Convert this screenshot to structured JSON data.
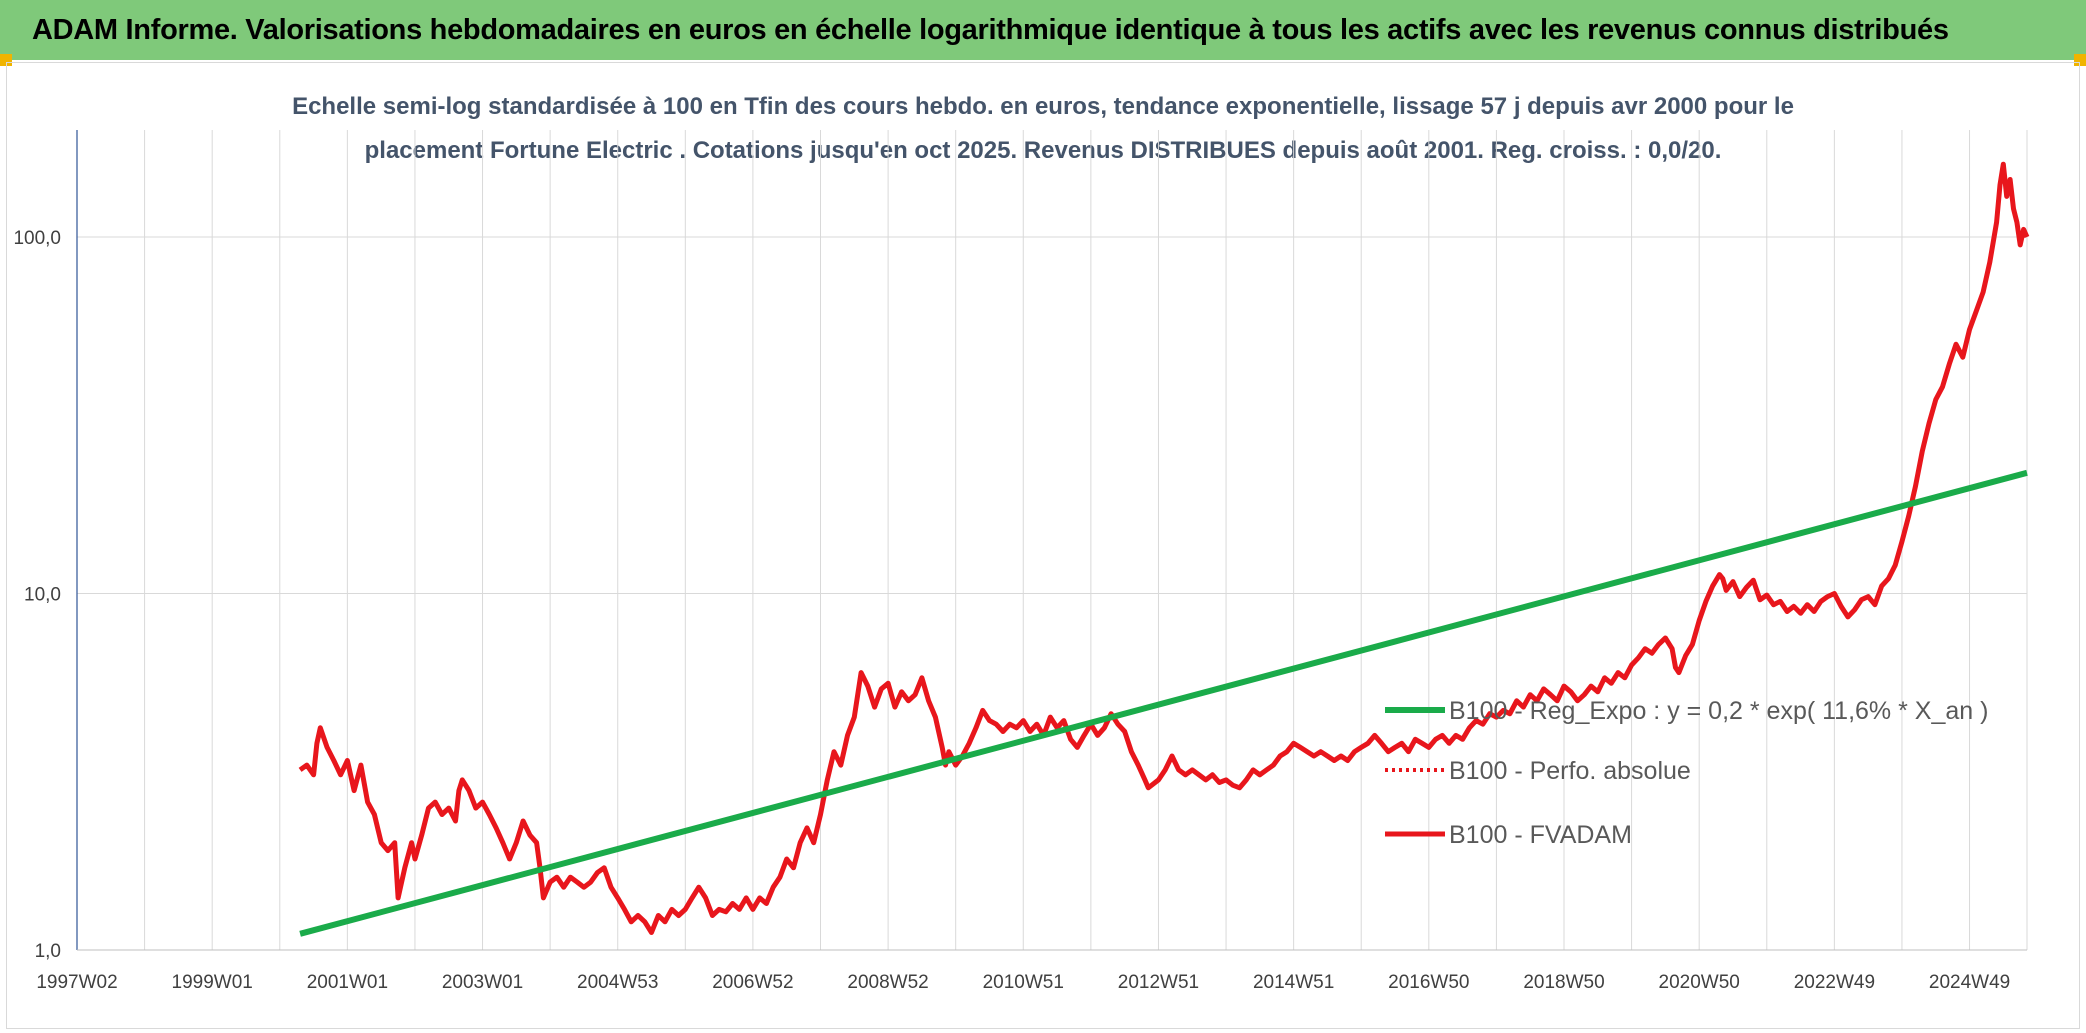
{
  "header": {
    "title": "ADAM Informe. Valorisations hebdomadaires en euros en échelle logarithmique identique à tous les actifs avec les revenus connus distribués"
  },
  "colors": {
    "header_bg": "#7fc97a",
    "regression": "#1aab4a",
    "fvadam": "#e8161c",
    "perfo": "#e8161c",
    "grid": "#d9d9d9",
    "axis": "#2f5597"
  },
  "chart_data": {
    "type": "line",
    "subtitle_lines": [
      "Echelle semi-log standardisée à 100 en Tfin des cours hebdo. en euros, tendance exponentielle, lissage 57 j depuis avr 2000 pour le",
      "placement Fortune Electric . Cotations jusqu'en oct 2025. Revenus DISTRIBUES depuis août 2001. Reg. croiss. : 0,0/20."
    ],
    "y_scale": "log",
    "ylim": [
      1,
      200
    ],
    "y_ticks": [
      {
        "value": 1,
        "label": "1,0"
      },
      {
        "value": 10,
        "label": "10,0"
      },
      {
        "value": 100,
        "label": "100,0"
      }
    ],
    "xlim": [
      1997.0,
      2025.85
    ],
    "x_ticks": [
      {
        "t": 1997.0,
        "label": "1997W02"
      },
      {
        "t": 1999.0,
        "label": "1999W01"
      },
      {
        "t": 2001.0,
        "label": "2001W01"
      },
      {
        "t": 2003.0,
        "label": "2003W01"
      },
      {
        "t": 2005.0,
        "label": "2004W53"
      },
      {
        "t": 2007.0,
        "label": "2006W52"
      },
      {
        "t": 2009.0,
        "label": "2008W52"
      },
      {
        "t": 2011.0,
        "label": "2010W51"
      },
      {
        "t": 2013.0,
        "label": "2012W51"
      },
      {
        "t": 2015.0,
        "label": "2014W51"
      },
      {
        "t": 2017.0,
        "label": "2016W50"
      },
      {
        "t": 2019.0,
        "label": "2018W50"
      },
      {
        "t": 2021.0,
        "label": "2020W50"
      },
      {
        "t": 2023.0,
        "label": "2022W49"
      },
      {
        "t": 2025.0,
        "label": "2024W49"
      }
    ],
    "grid": true,
    "legend_position": "right",
    "series": [
      {
        "name": "B100 - Reg_Expo : y = 0,2 * exp( 11,6% *  X_an )",
        "style": "solid-green",
        "points": [
          [
            2000.3,
            1.11
          ],
          [
            2025.85,
            21.8
          ]
        ]
      },
      {
        "name": "B100 - Perfo. absolue",
        "style": "dotted-red",
        "points": []
      },
      {
        "name": "B100 - FVADAM",
        "style": "solid-red",
        "points": [
          [
            2000.3,
            3.2
          ],
          [
            2000.4,
            3.3
          ],
          [
            2000.5,
            3.1
          ],
          [
            2000.55,
            3.8
          ],
          [
            2000.6,
            4.2
          ],
          [
            2000.7,
            3.7
          ],
          [
            2000.8,
            3.4
          ],
          [
            2000.9,
            3.1
          ],
          [
            2001.0,
            3.4
          ],
          [
            2001.1,
            2.8
          ],
          [
            2001.2,
            3.3
          ],
          [
            2001.3,
            2.6
          ],
          [
            2001.4,
            2.4
          ],
          [
            2001.5,
            2.0
          ],
          [
            2001.6,
            1.9
          ],
          [
            2001.7,
            2.0
          ],
          [
            2001.75,
            1.4
          ],
          [
            2001.85,
            1.7
          ],
          [
            2001.95,
            2.0
          ],
          [
            2002.0,
            1.8
          ],
          [
            2002.1,
            2.1
          ],
          [
            2002.2,
            2.5
          ],
          [
            2002.3,
            2.6
          ],
          [
            2002.4,
            2.4
          ],
          [
            2002.5,
            2.5
          ],
          [
            2002.6,
            2.3
          ],
          [
            2002.65,
            2.8
          ],
          [
            2002.7,
            3.0
          ],
          [
            2002.8,
            2.8
          ],
          [
            2002.9,
            2.5
          ],
          [
            2003.0,
            2.6
          ],
          [
            2003.1,
            2.4
          ],
          [
            2003.2,
            2.2
          ],
          [
            2003.3,
            2.0
          ],
          [
            2003.4,
            1.8
          ],
          [
            2003.5,
            2.0
          ],
          [
            2003.6,
            2.3
          ],
          [
            2003.7,
            2.1
          ],
          [
            2003.8,
            2.0
          ],
          [
            2003.85,
            1.7
          ],
          [
            2003.9,
            1.4
          ],
          [
            2004.0,
            1.55
          ],
          [
            2004.1,
            1.6
          ],
          [
            2004.2,
            1.5
          ],
          [
            2004.3,
            1.6
          ],
          [
            2004.4,
            1.55
          ],
          [
            2004.5,
            1.5
          ],
          [
            2004.6,
            1.55
          ],
          [
            2004.7,
            1.65
          ],
          [
            2004.8,
            1.7
          ],
          [
            2004.9,
            1.5
          ],
          [
            2005.0,
            1.4
          ],
          [
            2005.1,
            1.3
          ],
          [
            2005.2,
            1.2
          ],
          [
            2005.3,
            1.25
          ],
          [
            2005.4,
            1.2
          ],
          [
            2005.5,
            1.12
          ],
          [
            2005.6,
            1.25
          ],
          [
            2005.7,
            1.2
          ],
          [
            2005.8,
            1.3
          ],
          [
            2005.9,
            1.25
          ],
          [
            2006.0,
            1.3
          ],
          [
            2006.1,
            1.4
          ],
          [
            2006.2,
            1.5
          ],
          [
            2006.3,
            1.4
          ],
          [
            2006.4,
            1.25
          ],
          [
            2006.5,
            1.3
          ],
          [
            2006.6,
            1.28
          ],
          [
            2006.7,
            1.35
          ],
          [
            2006.8,
            1.3
          ],
          [
            2006.9,
            1.4
          ],
          [
            2007.0,
            1.3
          ],
          [
            2007.1,
            1.4
          ],
          [
            2007.2,
            1.35
          ],
          [
            2007.3,
            1.5
          ],
          [
            2007.4,
            1.6
          ],
          [
            2007.5,
            1.8
          ],
          [
            2007.6,
            1.7
          ],
          [
            2007.7,
            2.0
          ],
          [
            2007.8,
            2.2
          ],
          [
            2007.9,
            2.0
          ],
          [
            2008.0,
            2.4
          ],
          [
            2008.1,
            3.0
          ],
          [
            2008.2,
            3.6
          ],
          [
            2008.3,
            3.3
          ],
          [
            2008.4,
            4.0
          ],
          [
            2008.5,
            4.5
          ],
          [
            2008.6,
            6.0
          ],
          [
            2008.7,
            5.5
          ],
          [
            2008.8,
            4.8
          ],
          [
            2008.9,
            5.4
          ],
          [
            2009.0,
            5.6
          ],
          [
            2009.1,
            4.8
          ],
          [
            2009.2,
            5.3
          ],
          [
            2009.3,
            5.0
          ],
          [
            2009.4,
            5.2
          ],
          [
            2009.5,
            5.8
          ],
          [
            2009.6,
            5.0
          ],
          [
            2009.7,
            4.5
          ],
          [
            2009.8,
            3.7
          ],
          [
            2009.85,
            3.3
          ],
          [
            2009.9,
            3.6
          ],
          [
            2010.0,
            3.3
          ],
          [
            2010.1,
            3.5
          ],
          [
            2010.2,
            3.8
          ],
          [
            2010.3,
            4.2
          ],
          [
            2010.4,
            4.7
          ],
          [
            2010.5,
            4.4
          ],
          [
            2010.6,
            4.3
          ],
          [
            2010.7,
            4.1
          ],
          [
            2010.8,
            4.3
          ],
          [
            2010.9,
            4.2
          ],
          [
            2011.0,
            4.4
          ],
          [
            2011.1,
            4.1
          ],
          [
            2011.2,
            4.3
          ],
          [
            2011.3,
            4.0
          ],
          [
            2011.4,
            4.5
          ],
          [
            2011.5,
            4.2
          ],
          [
            2011.6,
            4.4
          ],
          [
            2011.7,
            3.9
          ],
          [
            2011.8,
            3.7
          ],
          [
            2011.9,
            4.0
          ],
          [
            2012.0,
            4.3
          ],
          [
            2012.1,
            4.0
          ],
          [
            2012.2,
            4.2
          ],
          [
            2012.3,
            4.6
          ],
          [
            2012.4,
            4.3
          ],
          [
            2012.5,
            4.1
          ],
          [
            2012.6,
            3.6
          ],
          [
            2012.7,
            3.3
          ],
          [
            2012.8,
            3.0
          ],
          [
            2012.85,
            2.85
          ],
          [
            2012.9,
            2.9
          ],
          [
            2013.0,
            3.0
          ],
          [
            2013.1,
            3.2
          ],
          [
            2013.2,
            3.5
          ],
          [
            2013.3,
            3.2
          ],
          [
            2013.4,
            3.1
          ],
          [
            2013.5,
            3.2
          ],
          [
            2013.6,
            3.1
          ],
          [
            2013.7,
            3.0
          ],
          [
            2013.8,
            3.1
          ],
          [
            2013.9,
            2.95
          ],
          [
            2014.0,
            3.0
          ],
          [
            2014.1,
            2.9
          ],
          [
            2014.2,
            2.85
          ],
          [
            2014.3,
            3.0
          ],
          [
            2014.4,
            3.2
          ],
          [
            2014.5,
            3.1
          ],
          [
            2014.6,
            3.2
          ],
          [
            2014.7,
            3.3
          ],
          [
            2014.8,
            3.5
          ],
          [
            2014.9,
            3.6
          ],
          [
            2015.0,
            3.8
          ],
          [
            2015.1,
            3.7
          ],
          [
            2015.2,
            3.6
          ],
          [
            2015.3,
            3.5
          ],
          [
            2015.4,
            3.6
          ],
          [
            2015.5,
            3.5
          ],
          [
            2015.6,
            3.4
          ],
          [
            2015.7,
            3.5
          ],
          [
            2015.8,
            3.4
          ],
          [
            2015.9,
            3.6
          ],
          [
            2016.0,
            3.7
          ],
          [
            2016.1,
            3.8
          ],
          [
            2016.2,
            4.0
          ],
          [
            2016.3,
            3.8
          ],
          [
            2016.4,
            3.6
          ],
          [
            2016.5,
            3.7
          ],
          [
            2016.6,
            3.8
          ],
          [
            2016.7,
            3.6
          ],
          [
            2016.8,
            3.9
          ],
          [
            2016.9,
            3.8
          ],
          [
            2017.0,
            3.7
          ],
          [
            2017.1,
            3.9
          ],
          [
            2017.2,
            4.0
          ],
          [
            2017.3,
            3.8
          ],
          [
            2017.4,
            4.0
          ],
          [
            2017.5,
            3.9
          ],
          [
            2017.6,
            4.2
          ],
          [
            2017.7,
            4.4
          ],
          [
            2017.8,
            4.3
          ],
          [
            2017.9,
            4.6
          ],
          [
            2018.0,
            4.5
          ],
          [
            2018.1,
            4.7
          ],
          [
            2018.2,
            4.6
          ],
          [
            2018.3,
            5.0
          ],
          [
            2018.4,
            4.8
          ],
          [
            2018.5,
            5.2
          ],
          [
            2018.6,
            5.0
          ],
          [
            2018.7,
            5.4
          ],
          [
            2018.8,
            5.2
          ],
          [
            2018.9,
            5.0
          ],
          [
            2019.0,
            5.5
          ],
          [
            2019.1,
            5.3
          ],
          [
            2019.2,
            5.0
          ],
          [
            2019.3,
            5.2
          ],
          [
            2019.4,
            5.5
          ],
          [
            2019.5,
            5.3
          ],
          [
            2019.6,
            5.8
          ],
          [
            2019.7,
            5.6
          ],
          [
            2019.8,
            6.0
          ],
          [
            2019.9,
            5.8
          ],
          [
            2020.0,
            6.3
          ],
          [
            2020.1,
            6.6
          ],
          [
            2020.2,
            7.0
          ],
          [
            2020.3,
            6.8
          ],
          [
            2020.4,
            7.2
          ],
          [
            2020.5,
            7.5
          ],
          [
            2020.6,
            7.0
          ],
          [
            2020.65,
            6.2
          ],
          [
            2020.7,
            6.0
          ],
          [
            2020.8,
            6.7
          ],
          [
            2020.9,
            7.2
          ],
          [
            2021.0,
            8.4
          ],
          [
            2021.1,
            9.5
          ],
          [
            2021.2,
            10.5
          ],
          [
            2021.3,
            11.3
          ],
          [
            2021.35,
            11.0
          ],
          [
            2021.4,
            10.2
          ],
          [
            2021.5,
            10.8
          ],
          [
            2021.6,
            9.8
          ],
          [
            2021.7,
            10.4
          ],
          [
            2021.8,
            10.9
          ],
          [
            2021.9,
            9.6
          ],
          [
            2022.0,
            9.9
          ],
          [
            2022.1,
            9.3
          ],
          [
            2022.2,
            9.5
          ],
          [
            2022.3,
            8.9
          ],
          [
            2022.4,
            9.2
          ],
          [
            2022.5,
            8.8
          ],
          [
            2022.6,
            9.3
          ],
          [
            2022.7,
            8.9
          ],
          [
            2022.8,
            9.5
          ],
          [
            2022.9,
            9.8
          ],
          [
            2023.0,
            10.0
          ],
          [
            2023.1,
            9.2
          ],
          [
            2023.2,
            8.6
          ],
          [
            2023.3,
            9.0
          ],
          [
            2023.4,
            9.6
          ],
          [
            2023.5,
            9.8
          ],
          [
            2023.6,
            9.3
          ],
          [
            2023.7,
            10.5
          ],
          [
            2023.8,
            11.0
          ],
          [
            2023.9,
            12.0
          ],
          [
            2024.0,
            14.0
          ],
          [
            2024.1,
            16.5
          ],
          [
            2024.2,
            20.0
          ],
          [
            2024.3,
            25.0
          ],
          [
            2024.4,
            30.0
          ],
          [
            2024.5,
            35.0
          ],
          [
            2024.6,
            38.0
          ],
          [
            2024.7,
            44.0
          ],
          [
            2024.8,
            50.0
          ],
          [
            2024.9,
            46.0
          ],
          [
            2025.0,
            55.0
          ],
          [
            2025.1,
            62.0
          ],
          [
            2025.2,
            70.0
          ],
          [
            2025.3,
            85.0
          ],
          [
            2025.4,
            110.0
          ],
          [
            2025.45,
            140.0
          ],
          [
            2025.5,
            160.0
          ],
          [
            2025.55,
            130.0
          ],
          [
            2025.6,
            145.0
          ],
          [
            2025.65,
            120.0
          ],
          [
            2025.7,
            110.0
          ],
          [
            2025.75,
            95.0
          ],
          [
            2025.8,
            105.0
          ],
          [
            2025.85,
            100.0
          ]
        ]
      }
    ]
  }
}
